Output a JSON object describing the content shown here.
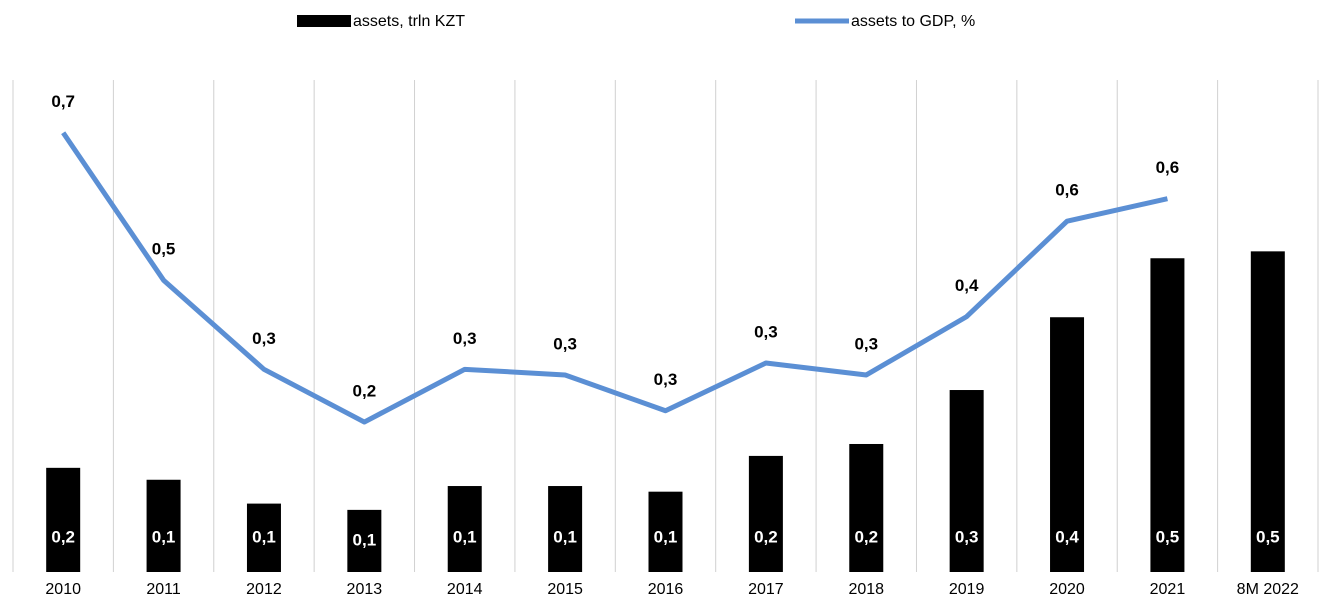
{
  "chart_data": {
    "type": "bar_line",
    "categories": [
      "2010",
      "2011",
      "2012",
      "2013",
      "2014",
      "2015",
      "2016",
      "2017",
      "2018",
      "2019",
      "2020",
      "2021",
      "8M 2022"
    ],
    "series": [
      {
        "name": "assets, trln KZT",
        "color": "#000000",
        "type": "bar",
        "values": [
          0.166,
          0.147,
          0.109,
          0.099,
          0.137,
          0.137,
          0.128,
          0.185,
          0.204,
          0.29,
          0.406,
          0.5,
          0.511
        ],
        "value_labels": [
          "0,2",
          "0,1",
          "0,1",
          "0,1",
          "0,1",
          "0,1",
          "0,1",
          "0,2",
          "0,2",
          "0,3",
          "0,4",
          "0,5",
          "0,5"
        ]
      },
      {
        "name": "assets to GDP, %",
        "color": "#5b8fd4",
        "type": "line",
        "axis": "y2",
        "values": [
          0.7,
          0.465,
          0.323,
          0.239,
          0.323,
          0.314,
          0.257,
          0.333,
          0.314,
          0.407,
          0.559,
          0.595,
          null
        ],
        "value_labels": [
          "0,7",
          "0,5",
          "0,3",
          "0,2",
          "0,3",
          "0,3",
          "0,3",
          "0,3",
          "0,3",
          "0,4",
          "0,6",
          "0,6",
          null
        ]
      }
    ],
    "ylim": [
      0,
      0.8
    ],
    "y2lim": [
      0,
      0.8
    ],
    "grid": true,
    "legend": "top"
  }
}
